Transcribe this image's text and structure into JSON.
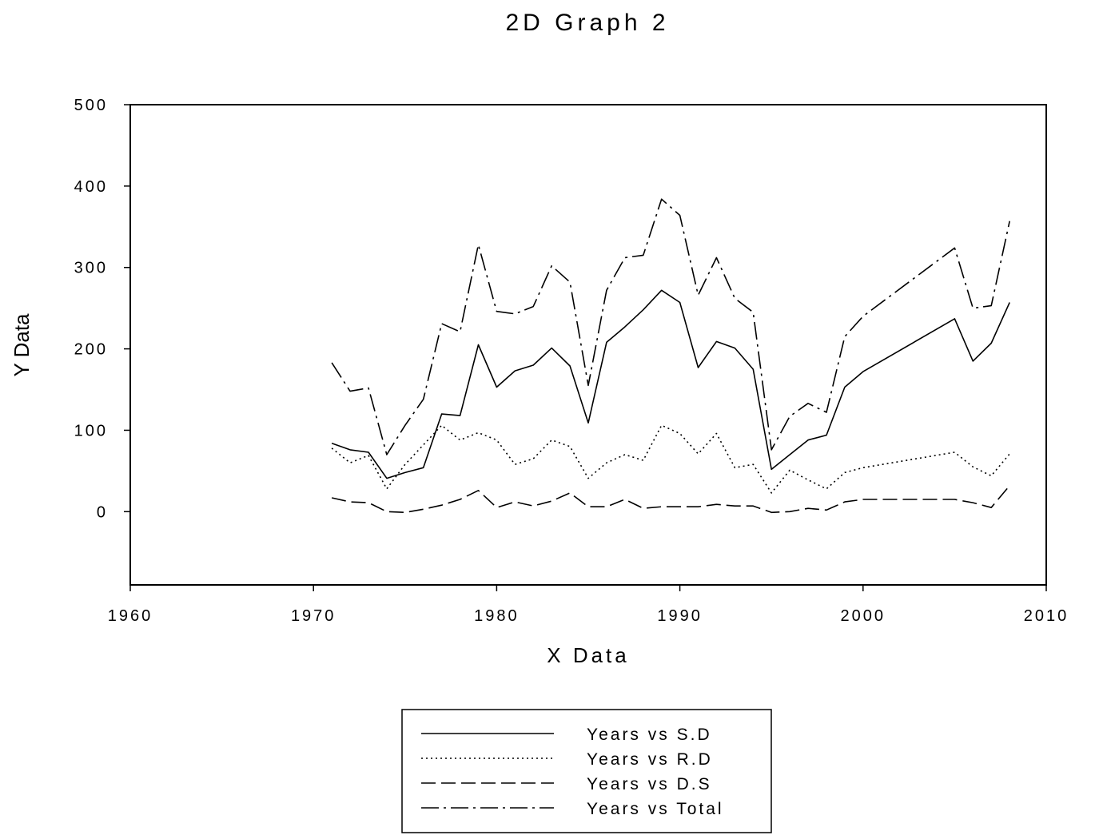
{
  "chart_data": {
    "type": "line",
    "title": "2D Graph 2",
    "xlabel": "X Data",
    "ylabel": "Y Data",
    "xlim": [
      1960,
      2010
    ],
    "ylim": [
      -90,
      500
    ],
    "xticks": [
      1960,
      1970,
      1980,
      1990,
      2000,
      2010
    ],
    "yticks": [
      0,
      100,
      200,
      300,
      400,
      500
    ],
    "grid": false,
    "legend_position": "bottom-center",
    "x": [
      1971,
      1972,
      1973,
      1974,
      1975,
      1976,
      1977,
      1978,
      1979,
      1980,
      1981,
      1982,
      1983,
      1984,
      1985,
      1986,
      1987,
      1988,
      1989,
      1990,
      1991,
      1992,
      1993,
      1994,
      1995,
      1996,
      1997,
      1998,
      1999,
      2000,
      2005,
      2006,
      2007,
      2008
    ],
    "series": [
      {
        "name": "Years vs S.D",
        "dash": "solid",
        "values": [
          84,
          76,
          73,
          41,
          48,
          54,
          120,
          118,
          205,
          153,
          173,
          180,
          201,
          179,
          109,
          208,
          227,
          248,
          272,
          257,
          177,
          209,
          201,
          175,
          52,
          70,
          88,
          94,
          153,
          172,
          237,
          185,
          207,
          257
        ]
      },
      {
        "name": "Years vs R.D",
        "dash": "dotted",
        "values": [
          78,
          60,
          69,
          28,
          58,
          82,
          106,
          88,
          97,
          88,
          58,
          65,
          88,
          80,
          41,
          60,
          70,
          63,
          106,
          96,
          71,
          96,
          54,
          58,
          23,
          51,
          39,
          28,
          48,
          54,
          73,
          55,
          44,
          71
        ]
      },
      {
        "name": "Years vs D.S",
        "dash": "dashed",
        "values": [
          17,
          12,
          11,
          0,
          -1,
          3,
          8,
          15,
          26,
          5,
          12,
          7,
          13,
          23,
          6,
          6,
          15,
          4,
          6,
          6,
          6,
          9,
          7,
          7,
          -1,
          0,
          4,
          2,
          12,
          15,
          15,
          11,
          5,
          32
        ]
      },
      {
        "name": "Years vs Total",
        "dash": "dash-dot",
        "values": [
          183,
          148,
          152,
          70,
          106,
          138,
          231,
          221,
          328,
          246,
          243,
          252,
          302,
          282,
          155,
          272,
          312,
          315,
          384,
          364,
          266,
          312,
          262,
          245,
          76,
          117,
          133,
          122,
          215,
          240,
          324,
          250,
          253,
          357
        ]
      }
    ]
  }
}
